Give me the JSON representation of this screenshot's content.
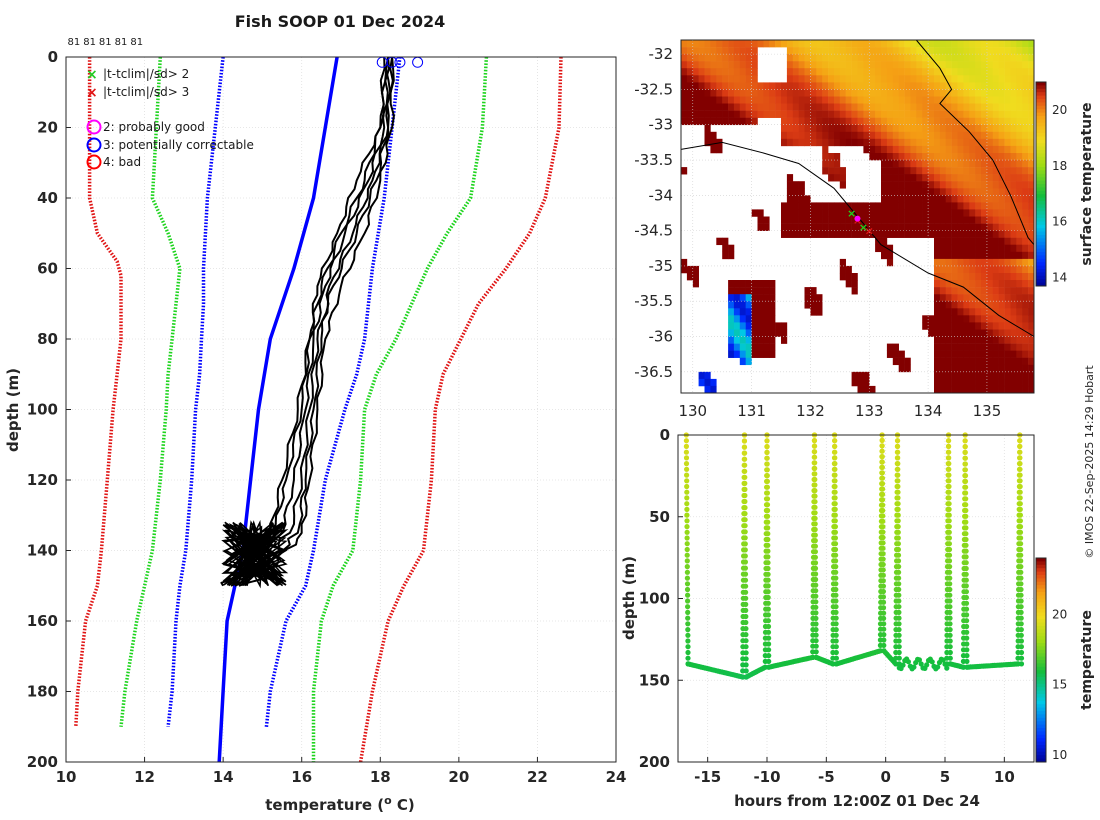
{
  "title": "Fish SOOP 01 Dec 2024",
  "credit": "© IMOS 22-Sep-2025 14:29 Hobart",
  "colors": {
    "ax": "#262626",
    "grid": "#dfdfdf",
    "profile": "#000000",
    "clim_mean": "#0000ff",
    "sd2": "#1ed41e",
    "sd3": "#e01414",
    "flag_probably_good": "#ff00ff",
    "flag_correctable": "#0000ff",
    "flag_bad": "#ff0000"
  },
  "chart_data": [
    {
      "id": "profile",
      "type": "line",
      "xlabel": "temperature (",
      "xlabel_sup": "o",
      "xlabel_end": " C)",
      "ylabel": "depth (m)",
      "xlim": [
        10,
        24
      ],
      "ylim": [
        0,
        200
      ],
      "xticks": [
        "10",
        "12",
        "14",
        "16",
        "18",
        "20",
        "22",
        "24"
      ],
      "yticks": [
        "0",
        "20",
        "40",
        "60",
        "80",
        "100",
        "120",
        "140",
        "160",
        "180",
        "200"
      ],
      "xtick_values": [
        10,
        12,
        14,
        16,
        18,
        20,
        22,
        24
      ],
      "ytick_values": [
        0,
        20,
        40,
        60,
        80,
        100,
        120,
        140,
        160,
        180,
        200
      ],
      "top_labels": [
        "81",
        "81",
        "81",
        "81",
        "81"
      ],
      "top_label_x": [
        10.2,
        10.6,
        11.0,
        11.4,
        11.8
      ],
      "legend": [
        {
          "marker": "x",
          "color": "#22cc22",
          "label": "|t-tclim|/sd> 2"
        },
        {
          "marker": "x",
          "color": "#e01414",
          "label": "|t-tclim|/sd> 3"
        },
        {
          "marker": "o",
          "color": "#ff00ff",
          "label": "2: probably good"
        },
        {
          "marker": "o",
          "color": "#0000ff",
          "label": "3: potentially correctable"
        },
        {
          "marker": "o",
          "color": "#ff0000",
          "label": "4: bad"
        }
      ],
      "climatology": [
        {
          "name": "minus 3 sd",
          "style": "sd3",
          "depth": [
            0,
            20,
            40,
            50,
            58,
            62,
            80,
            90,
            100,
            120,
            140,
            150,
            160,
            180,
            190
          ],
          "temp": [
            10.6,
            10.6,
            10.6,
            10.8,
            11.3,
            11.4,
            11.4,
            11.3,
            11.2,
            11.05,
            10.9,
            10.8,
            10.5,
            10.3,
            10.25
          ]
        },
        {
          "name": "minus 2 sd",
          "style": "sd2",
          "depth": [
            0,
            20,
            40,
            50,
            60,
            70,
            80,
            90,
            100,
            120,
            140,
            150,
            160,
            180,
            190
          ],
          "temp": [
            12.4,
            12.3,
            12.2,
            12.6,
            12.9,
            12.8,
            12.7,
            12.6,
            12.55,
            12.4,
            12.2,
            12.0,
            11.8,
            11.5,
            11.4
          ]
        },
        {
          "name": "minus 1 sd",
          "style": "sd1",
          "depth": [
            0,
            20,
            40,
            60,
            70,
            80,
            90,
            100,
            120,
            140,
            150,
            160,
            180,
            190
          ],
          "temp": [
            14.0,
            13.8,
            13.6,
            13.5,
            13.5,
            13.45,
            13.4,
            13.3,
            13.2,
            13.05,
            12.9,
            12.8,
            12.7,
            12.6
          ]
        },
        {
          "name": "mean",
          "style": "mean",
          "depth": [
            0,
            20,
            40,
            60,
            80,
            100,
            120,
            140,
            150,
            160,
            180,
            200
          ],
          "temp": [
            16.9,
            16.6,
            16.3,
            15.8,
            15.2,
            14.9,
            14.7,
            14.5,
            14.3,
            14.1,
            14.0,
            13.9
          ]
        },
        {
          "name": "plus 1 sd",
          "style": "sd1",
          "depth": [
            0,
            20,
            40,
            60,
            80,
            90,
            100,
            120,
            140,
            150,
            160,
            180,
            190
          ],
          "temp": [
            18.5,
            18.3,
            18.1,
            17.8,
            17.6,
            17.4,
            17.1,
            16.6,
            16.3,
            16.1,
            15.6,
            15.2,
            15.1
          ]
        },
        {
          "name": "plus 2 sd",
          "style": "sd2",
          "depth": [
            0,
            20,
            40,
            50,
            60,
            80,
            90,
            100,
            120,
            140,
            150,
            160,
            180,
            200
          ],
          "temp": [
            20.7,
            20.6,
            20.3,
            19.7,
            19.2,
            18.4,
            17.9,
            17.6,
            17.5,
            17.3,
            16.8,
            16.5,
            16.3,
            16.3
          ]
        },
        {
          "name": "plus 3 sd",
          "style": "sd3",
          "depth": [
            0,
            20,
            40,
            50,
            60,
            70,
            90,
            100,
            120,
            140,
            150,
            160,
            180,
            200
          ],
          "temp": [
            22.6,
            22.55,
            22.2,
            21.8,
            21.2,
            20.5,
            19.6,
            19.4,
            19.3,
            19.1,
            18.6,
            18.2,
            17.8,
            17.5
          ]
        }
      ],
      "profiles": [
        {
          "depth": [
            0,
            20,
            35,
            50,
            65,
            80,
            100,
            120,
            135,
            145,
            150
          ],
          "temp": [
            18.1,
            18.0,
            17.4,
            16.9,
            16.4,
            16.2,
            16.0,
            15.6,
            15.3,
            14.8,
            14.5
          ]
        },
        {
          "depth": [
            0,
            20,
            35,
            50,
            65,
            80,
            100,
            120,
            135,
            145,
            150
          ],
          "temp": [
            18.2,
            18.1,
            17.7,
            17.1,
            16.6,
            16.3,
            16.1,
            15.8,
            15.5,
            14.6,
            14.2
          ]
        },
        {
          "depth": [
            0,
            20,
            35,
            50,
            65,
            80,
            100,
            120,
            135,
            145,
            150
          ],
          "temp": [
            18.2,
            18.2,
            17.9,
            17.4,
            16.8,
            16.4,
            16.2,
            16.0,
            15.7,
            14.9,
            14.4
          ]
        },
        {
          "depth": [
            0,
            20,
            35,
            50,
            65,
            80,
            100,
            120,
            135,
            145,
            150
          ],
          "temp": [
            18.3,
            18.2,
            17.8,
            17.3,
            16.7,
            16.5,
            16.3,
            16.1,
            15.9,
            15.0,
            14.3
          ]
        },
        {
          "depth": [
            0,
            20,
            35,
            50,
            65,
            80,
            100,
            120,
            135,
            145,
            150
          ],
          "temp": [
            18.3,
            18.3,
            18.0,
            17.6,
            17.0,
            16.6,
            16.4,
            16.2,
            16.0,
            15.2,
            14.6
          ]
        },
        {
          "depth": [
            0,
            20,
            35,
            50,
            65,
            80,
            100,
            120,
            135,
            145,
            150
          ],
          "temp": [
            18.2,
            18.0,
            17.6,
            17.0,
            16.5,
            16.2,
            15.9,
            15.5,
            15.2,
            14.5,
            14.0
          ]
        }
      ],
      "surface_flags": [
        18.05,
        18.3,
        18.5,
        18.95
      ]
    },
    {
      "id": "map",
      "type": "heatmap",
      "xlim": [
        129.8,
        135.8
      ],
      "ylim": [
        -36.8,
        -31.8
      ],
      "xticks": [
        "130",
        "131",
        "132",
        "133",
        "134",
        "135"
      ],
      "yticks": [
        "-32",
        "-32.5",
        "-33",
        "-33.5",
        "-34",
        "-34.5",
        "-35",
        "-35.5",
        "-36",
        "-36.5"
      ],
      "xtick_values": [
        130,
        131,
        132,
        133,
        134,
        135
      ],
      "ytick_values": [
        -32,
        -32.5,
        -33,
        -33.5,
        -34,
        -34.5,
        -35,
        -35.5,
        -36,
        -36.5
      ],
      "colorbar_label": "surface temperature",
      "colorbar_ticks": [
        "14",
        "16",
        "18",
        "20"
      ],
      "colorbar_tick_values": [
        14,
        16,
        18,
        20
      ],
      "clim": [
        13.7,
        21
      ],
      "track": [
        [
          132.7,
          -34.25
        ],
        [
          132.8,
          -34.35
        ],
        [
          132.9,
          -34.45
        ],
        [
          133.0,
          -34.5
        ]
      ]
    },
    {
      "id": "timeseries",
      "type": "scatter",
      "xlabel": "hours from 12:00Z 01 Dec 24",
      "ylabel": "depth (m)",
      "xlim": [
        -17.5,
        12.5
      ],
      "ylim": [
        0,
        200
      ],
      "xticks": [
        "-15",
        "-10",
        "-5",
        "0",
        "5",
        "10"
      ],
      "xtick_values": [
        -15,
        -10,
        -5,
        0,
        5,
        10
      ],
      "yticks": [
        "0",
        "50",
        "100",
        "150",
        "200"
      ],
      "ytick_values": [
        0,
        50,
        100,
        150,
        200
      ],
      "colorbar_label": "temperature",
      "colorbar_ticks": [
        "10",
        "15",
        "20"
      ],
      "colorbar_tick_values": [
        10,
        15,
        20
      ],
      "clim": [
        9.5,
        24
      ],
      "casts_hours": [
        -16.8,
        -11.9,
        -10.0,
        -6.0,
        -4.3,
        -0.3,
        1.0,
        5.3,
        6.7,
        11.3
      ],
      "bottom_depth": [
        140,
        148,
        142,
        136,
        140,
        132,
        140,
        140,
        142,
        140
      ]
    }
  ]
}
